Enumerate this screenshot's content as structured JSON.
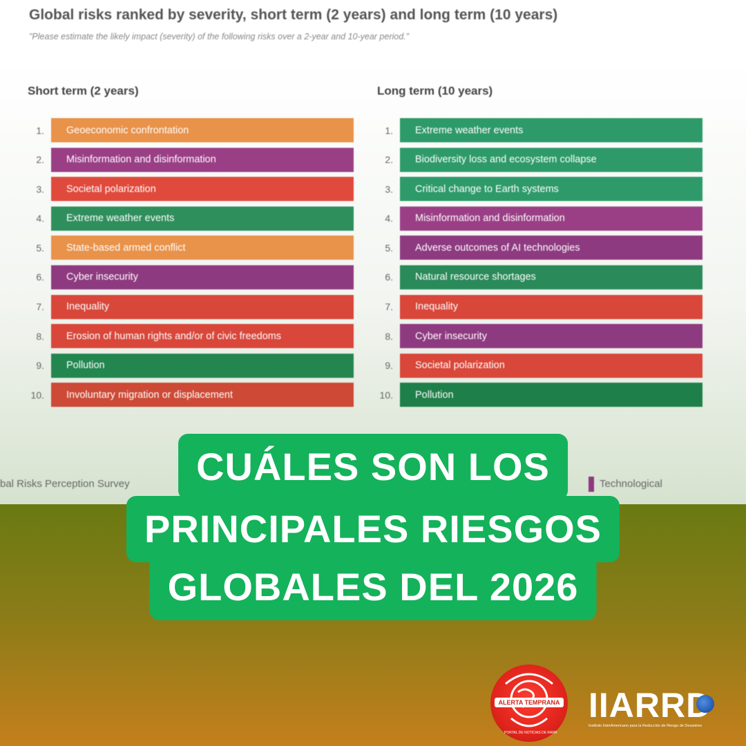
{
  "chart": {
    "title": "Global risks ranked by severity, short term (2 years) and long term (10 years)",
    "subtitle": "\"Please estimate the likely impact (severity) of the following risks over a 2-year and 10-year period.\"",
    "short_term": {
      "title": "Short term (2 years)",
      "items": [
        {
          "rank": "1.",
          "label": "Geoeconomic confrontation",
          "color": "#e8924a"
        },
        {
          "rank": "2.",
          "label": "Misinformation and disinformation",
          "color": "#9a3f86"
        },
        {
          "rank": "3.",
          "label": "Societal polarization",
          "color": "#e04a3c"
        },
        {
          "rank": "4.",
          "label": "Extreme weather events",
          "color": "#2e8f5c"
        },
        {
          "rank": "5.",
          "label": "State-based armed conflict",
          "color": "#e8924a"
        },
        {
          "rank": "6.",
          "label": "Cyber insecurity",
          "color": "#8e3a80"
        },
        {
          "rank": "7.",
          "label": "Inequality",
          "color": "#d8473a"
        },
        {
          "rank": "8.",
          "label": "Erosion of human rights and/or of civic freedoms",
          "color": "#d8473a"
        },
        {
          "rank": "9.",
          "label": "Pollution",
          "color": "#23864f"
        },
        {
          "rank": "10.",
          "label": "Involuntary migration or displacement",
          "color": "#cc4a36"
        }
      ]
    },
    "long_term": {
      "title": "Long term (10 years)",
      "items": [
        {
          "rank": "1.",
          "label": "Extreme weather events",
          "color": "#2e9a6a"
        },
        {
          "rank": "2.",
          "label": "Biodiversity loss and ecosystem collapse",
          "color": "#2e9a6a"
        },
        {
          "rank": "3.",
          "label": "Critical change to Earth systems",
          "color": "#2e9a6a"
        },
        {
          "rank": "4.",
          "label": "Misinformation and disinformation",
          "color": "#9a3f86"
        },
        {
          "rank": "5.",
          "label": "Adverse outcomes of AI technologies",
          "color": "#8e3a80"
        },
        {
          "rank": "6.",
          "label": "Natural resource shortages",
          "color": "#2a8a5a"
        },
        {
          "rank": "7.",
          "label": "Inequality",
          "color": "#d8473a"
        },
        {
          "rank": "8.",
          "label": "Cyber insecurity",
          "color": "#8e3a80"
        },
        {
          "rank": "9.",
          "label": "Societal polarization",
          "color": "#d8473a"
        },
        {
          "rank": "10.",
          "label": "Pollution",
          "color": "#1f7f4a"
        }
      ]
    },
    "source_text": "bal Risks Perception Survey",
    "legend_text": "Technological"
  },
  "headline": {
    "line1": "CUÁLES SON LOS",
    "line2": "PRINCIPALES RIESGOS",
    "line3": "GLOBALES DEL 2026"
  },
  "logos": {
    "alerta": {
      "ribbon": "ALERTA TEMPRANA",
      "sub": "PORTAL DE NOTICIAS DE RARR"
    },
    "iiarrd": {
      "name": "IIARRD",
      "sub": "Instituto InterAmericano para la Reducción de Riesgo de Desastres"
    }
  }
}
